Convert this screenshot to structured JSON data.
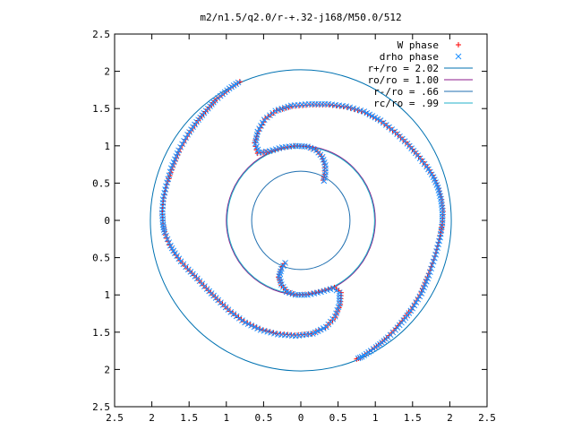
{
  "chart_data": {
    "type": "scatter",
    "title": "m2/n1.5/q2.0/r-+.32-j168/M50.0/512",
    "xlabel": "",
    "ylabel": "",
    "xlim": [
      -2.5,
      2.5
    ],
    "ylim": [
      -2.5,
      2.5
    ],
    "x_ticks": [
      -2.5,
      -2,
      -1.5,
      -1,
      -0.5,
      0,
      0.5,
      1,
      1.5,
      2,
      2.5
    ],
    "y_ticks": [
      -2.5,
      -2,
      -1.5,
      -1,
      -0.5,
      0,
      0.5,
      1,
      1.5,
      2,
      2.5
    ],
    "x_tick_labels": [
      "2.5",
      "2",
      "1.5",
      "1",
      "0.5",
      "0",
      "0.5",
      "1",
      "1.5",
      "2",
      "2.5"
    ],
    "y_tick_labels": [
      "2.5",
      "2",
      "1.5",
      "1",
      "0.5",
      "0",
      "0.5",
      "1",
      "1.5",
      "2",
      "2.5"
    ],
    "grid": false,
    "legend_position": "top-right",
    "series": [
      {
        "name": "W phase",
        "kind": "points",
        "marker": "plus",
        "color": "#ff0000",
        "arm_a": [
          [
            -0.82,
            1.86
          ],
          [
            -0.88,
            1.82
          ],
          [
            -0.94,
            1.78
          ],
          [
            -1.0,
            1.73
          ],
          [
            -1.06,
            1.68
          ],
          [
            -1.13,
            1.63
          ],
          [
            -1.2,
            1.55
          ],
          [
            -1.28,
            1.46
          ],
          [
            -1.38,
            1.34
          ],
          [
            -1.5,
            1.17
          ],
          [
            -1.62,
            0.96
          ],
          [
            -1.72,
            0.72
          ],
          [
            -1.8,
            0.48
          ],
          [
            -1.84,
            0.3
          ],
          [
            -1.86,
            0.12
          ],
          [
            -1.85,
            -0.05
          ],
          [
            -1.83,
            -0.15
          ],
          [
            -1.8,
            -0.24
          ],
          [
            -1.76,
            -0.33
          ],
          [
            -1.7,
            -0.43
          ],
          [
            -1.62,
            -0.54
          ],
          [
            -1.52,
            -0.65
          ],
          [
            -1.4,
            -0.77
          ],
          [
            -1.27,
            -0.91
          ],
          [
            -1.12,
            -1.06
          ],
          [
            -0.95,
            -1.22
          ],
          [
            -0.76,
            -1.36
          ],
          [
            -0.55,
            -1.46
          ],
          [
            -0.32,
            -1.52
          ],
          [
            -0.08,
            -1.54
          ],
          [
            0.15,
            -1.52
          ],
          [
            0.33,
            -1.44
          ],
          [
            0.46,
            -1.3
          ],
          [
            0.53,
            -1.13
          ],
          [
            0.54,
            -0.97
          ],
          [
            0.45,
            -0.9
          ],
          [
            0.28,
            -0.95
          ],
          [
            0.1,
            -0.99
          ],
          [
            -0.06,
            -1.0
          ],
          [
            -0.18,
            -0.96
          ],
          [
            -0.26,
            -0.87
          ],
          [
            -0.3,
            -0.76
          ],
          [
            -0.27,
            -0.66
          ],
          [
            -0.22,
            -0.58
          ]
        ],
        "arm_b": [
          [
            0.75,
            -1.86
          ],
          [
            0.8,
            -1.84
          ],
          [
            0.86,
            -1.8
          ],
          [
            0.92,
            -1.76
          ],
          [
            0.99,
            -1.71
          ],
          [
            1.07,
            -1.65
          ],
          [
            1.15,
            -1.58
          ],
          [
            1.25,
            -1.48
          ],
          [
            1.36,
            -1.35
          ],
          [
            1.48,
            -1.2
          ],
          [
            1.6,
            -1.0
          ],
          [
            1.7,
            -0.76
          ],
          [
            1.8,
            -0.48
          ],
          [
            1.86,
            -0.25
          ],
          [
            1.9,
            -0.05
          ],
          [
            1.91,
            0.12
          ],
          [
            1.89,
            0.28
          ],
          [
            1.85,
            0.43
          ],
          [
            1.79,
            0.57
          ],
          [
            1.7,
            0.71
          ],
          [
            1.58,
            0.86
          ],
          [
            1.44,
            1.02
          ],
          [
            1.27,
            1.18
          ],
          [
            1.08,
            1.33
          ],
          [
            0.86,
            1.45
          ],
          [
            0.62,
            1.52
          ],
          [
            0.38,
            1.55
          ],
          [
            0.12,
            1.55
          ],
          [
            -0.12,
            1.53
          ],
          [
            -0.33,
            1.47
          ],
          [
            -0.48,
            1.36
          ],
          [
            -0.57,
            1.2
          ],
          [
            -0.62,
            1.04
          ],
          [
            -0.58,
            0.9
          ],
          [
            -0.43,
            0.92
          ],
          [
            -0.26,
            0.97
          ],
          [
            -0.08,
            1.0
          ],
          [
            0.08,
            0.99
          ],
          [
            0.2,
            0.95
          ],
          [
            0.28,
            0.86
          ],
          [
            0.32,
            0.75
          ],
          [
            0.32,
            0.62
          ],
          [
            0.3,
            0.54
          ]
        ]
      },
      {
        "name": "drho phase",
        "kind": "points",
        "marker": "cross",
        "color": "#1e90ff",
        "arm_a": [
          [
            -0.84,
            1.85
          ],
          [
            -0.9,
            1.81
          ],
          [
            -0.96,
            1.77
          ],
          [
            -1.02,
            1.72
          ],
          [
            -1.08,
            1.67
          ],
          [
            -1.15,
            1.61
          ],
          [
            -1.22,
            1.53
          ],
          [
            -1.3,
            1.44
          ],
          [
            -1.4,
            1.32
          ],
          [
            -1.52,
            1.15
          ],
          [
            -1.64,
            0.94
          ],
          [
            -1.74,
            0.7
          ],
          [
            -1.81,
            0.46
          ],
          [
            -1.85,
            0.28
          ],
          [
            -1.86,
            0.1
          ],
          [
            -1.85,
            -0.06
          ],
          [
            -1.83,
            -0.16
          ],
          [
            -1.79,
            -0.25
          ],
          [
            -1.75,
            -0.34
          ],
          [
            -1.69,
            -0.44
          ],
          [
            -1.61,
            -0.55
          ],
          [
            -1.51,
            -0.66
          ],
          [
            -1.39,
            -0.78
          ],
          [
            -1.26,
            -0.92
          ],
          [
            -1.11,
            -1.07
          ],
          [
            -0.94,
            -1.23
          ],
          [
            -0.75,
            -1.37
          ],
          [
            -0.54,
            -1.47
          ],
          [
            -0.31,
            -1.53
          ],
          [
            -0.07,
            -1.55
          ],
          [
            0.16,
            -1.52
          ],
          [
            0.34,
            -1.43
          ],
          [
            0.46,
            -1.29
          ],
          [
            0.52,
            -1.12
          ],
          [
            0.52,
            -0.97
          ],
          [
            0.44,
            -0.91
          ],
          [
            0.27,
            -0.96
          ],
          [
            0.09,
            -1.0
          ],
          [
            -0.07,
            -1.0
          ],
          [
            -0.19,
            -0.96
          ],
          [
            -0.26,
            -0.86
          ],
          [
            -0.29,
            -0.75
          ],
          [
            -0.26,
            -0.65
          ],
          [
            -0.21,
            -0.57
          ]
        ],
        "arm_b": [
          [
            0.77,
            -1.85
          ],
          [
            0.82,
            -1.83
          ],
          [
            0.88,
            -1.79
          ],
          [
            0.94,
            -1.75
          ],
          [
            1.01,
            -1.7
          ],
          [
            1.09,
            -1.64
          ],
          [
            1.17,
            -1.57
          ],
          [
            1.27,
            -1.47
          ],
          [
            1.38,
            -1.34
          ],
          [
            1.5,
            -1.18
          ],
          [
            1.62,
            -0.98
          ],
          [
            1.72,
            -0.74
          ],
          [
            1.81,
            -0.46
          ],
          [
            1.87,
            -0.23
          ],
          [
            1.9,
            -0.04
          ],
          [
            1.9,
            0.13
          ],
          [
            1.88,
            0.29
          ],
          [
            1.84,
            0.44
          ],
          [
            1.78,
            0.58
          ],
          [
            1.69,
            0.72
          ],
          [
            1.57,
            0.87
          ],
          [
            1.43,
            1.03
          ],
          [
            1.26,
            1.19
          ],
          [
            1.07,
            1.34
          ],
          [
            0.85,
            1.46
          ],
          [
            0.61,
            1.53
          ],
          [
            0.37,
            1.56
          ],
          [
            0.11,
            1.56
          ],
          [
            -0.13,
            1.54
          ],
          [
            -0.34,
            1.47
          ],
          [
            -0.49,
            1.35
          ],
          [
            -0.58,
            1.19
          ],
          [
            -0.61,
            1.03
          ],
          [
            -0.56,
            0.91
          ],
          [
            -0.42,
            0.93
          ],
          [
            -0.25,
            0.98
          ],
          [
            -0.07,
            1.0
          ],
          [
            0.09,
            0.99
          ],
          [
            0.21,
            0.94
          ],
          [
            0.29,
            0.85
          ],
          [
            0.33,
            0.74
          ],
          [
            0.33,
            0.61
          ],
          [
            0.31,
            0.53
          ]
        ]
      },
      {
        "name": "r+/ro = 2.02",
        "kind": "circle",
        "radius": 2.02,
        "color": "#0072b2"
      },
      {
        "name": "ro/ro = 1.00",
        "kind": "circle",
        "radius": 1.0,
        "color": "#8b1a8b"
      },
      {
        "name": "r-/ro = .66",
        "kind": "circle",
        "radius": 0.66,
        "color": "#1f6fb0"
      },
      {
        "name": "rc/ro = .99",
        "kind": "circle",
        "radius": 0.99,
        "color": "#20b2c8"
      }
    ]
  }
}
